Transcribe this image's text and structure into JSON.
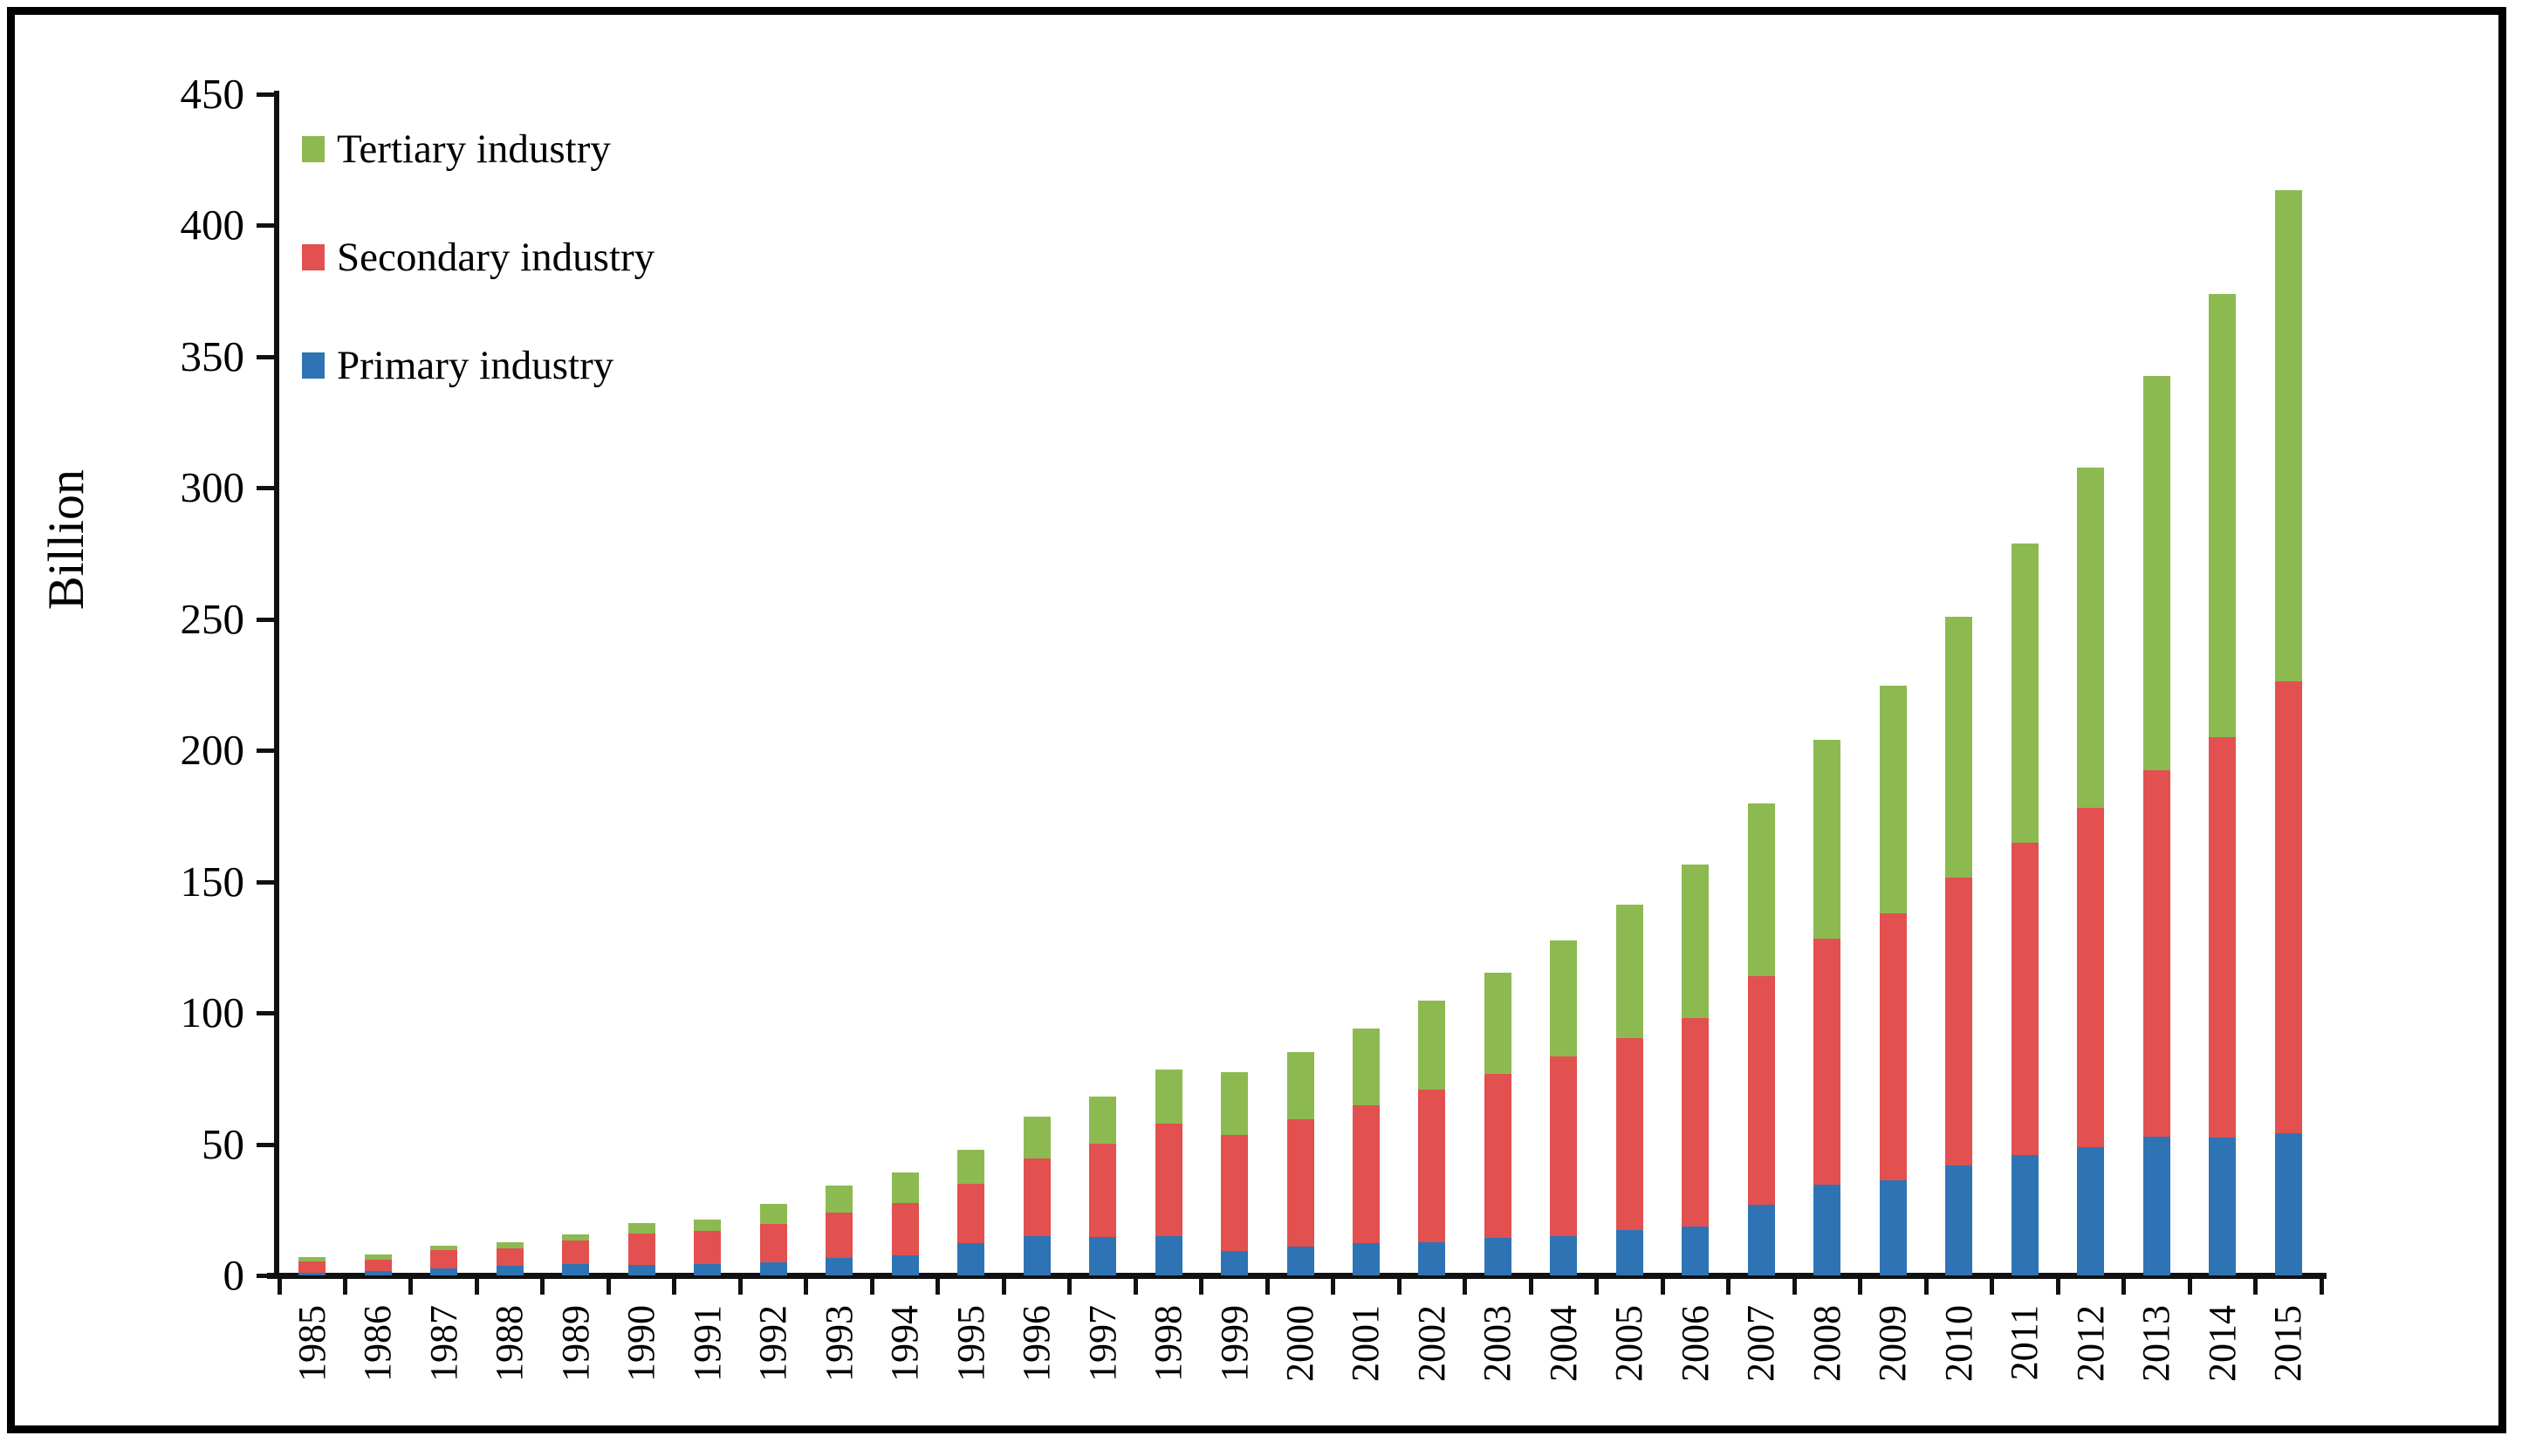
{
  "ylabel": "Billion",
  "colors": {
    "primary": "#2E74B5",
    "secondary": "#E25050",
    "tertiary": "#8CBA51",
    "axis": "#111111"
  },
  "legend": [
    {
      "label": "Tertiary industry",
      "series": "tertiary"
    },
    {
      "label": "Secondary industry",
      "series": "secondary"
    },
    {
      "label": "Primary industry",
      "series": "primary"
    }
  ],
  "yaxis": {
    "min": 0,
    "max": 450,
    "step": 50,
    "tick_labels": [
      "0",
      "50",
      "100",
      "150",
      "200",
      "250",
      "300",
      "350",
      "400",
      "450"
    ]
  },
  "chart_data": {
    "type": "bar",
    "stacked": true,
    "title": "",
    "xlabel": "",
    "ylabel": "Billion",
    "ylim": [
      0,
      450
    ],
    "grid": false,
    "legend_position": "top-left",
    "categories": [
      "1985",
      "1986",
      "1987",
      "1988",
      "1989",
      "1990",
      "1991",
      "1992",
      "1993",
      "1994",
      "1995",
      "1996",
      "1997",
      "1998",
      "1999",
      "2000",
      "2001",
      "2002",
      "2003",
      "2004",
      "2005",
      "2006",
      "2007",
      "2008",
      "2009",
      "2010",
      "2011",
      "2012",
      "2013",
      "2014",
      "2015"
    ],
    "series": [
      {
        "name": "Primary industry",
        "values": [
          1.0,
          1.7,
          2.6,
          3.7,
          4.2,
          4.0,
          4.2,
          5.1,
          6.7,
          7.6,
          12.3,
          15.0,
          14.6,
          15.1,
          9.2,
          11.0,
          12.2,
          12.8,
          14.2,
          15.0,
          17.2,
          18.7,
          27.0,
          34.6,
          36.2,
          41.8,
          45.9,
          48.9,
          52.9,
          52.6,
          54.2
        ]
      },
      {
        "name": "Secondary industry",
        "values": [
          4.3,
          4.2,
          7.0,
          6.6,
          9.2,
          11.9,
          12.8,
          14.5,
          17.2,
          20.0,
          22.5,
          29.6,
          35.7,
          42.8,
          44.2,
          48.6,
          52.6,
          57.9,
          62.5,
          68.3,
          73.1,
          79.4,
          87.0,
          93.8,
          101.9,
          109.6,
          118.9,
          129.2,
          139.4,
          152.4,
          172.2
        ]
      },
      {
        "name": "Tertiary industry",
        "values": [
          1.6,
          2.0,
          1.8,
          2.5,
          2.3,
          3.9,
          4.4,
          7.6,
          10.3,
          11.6,
          13.0,
          16.0,
          18.0,
          20.4,
          24.2,
          25.4,
          29.4,
          34.1,
          38.6,
          44.3,
          50.9,
          58.3,
          65.8,
          75.8,
          86.5,
          99.5,
          114.2,
          129.7,
          150.3,
          169.0,
          187.0
        ]
      }
    ],
    "totals": [
      6.9,
      7.9,
      11.4,
      12.8,
      15.7,
      19.8,
      21.4,
      27.2,
      34.2,
      39.2,
      47.8,
      60.6,
      68.3,
      78.3,
      77.6,
      85.0,
      94.2,
      104.8,
      115.3,
      127.6,
      141.2,
      156.4,
      179.8,
      204.2,
      224.6,
      250.9,
      279.0,
      307.8,
      342.6,
      374.0,
      413.4
    ]
  }
}
